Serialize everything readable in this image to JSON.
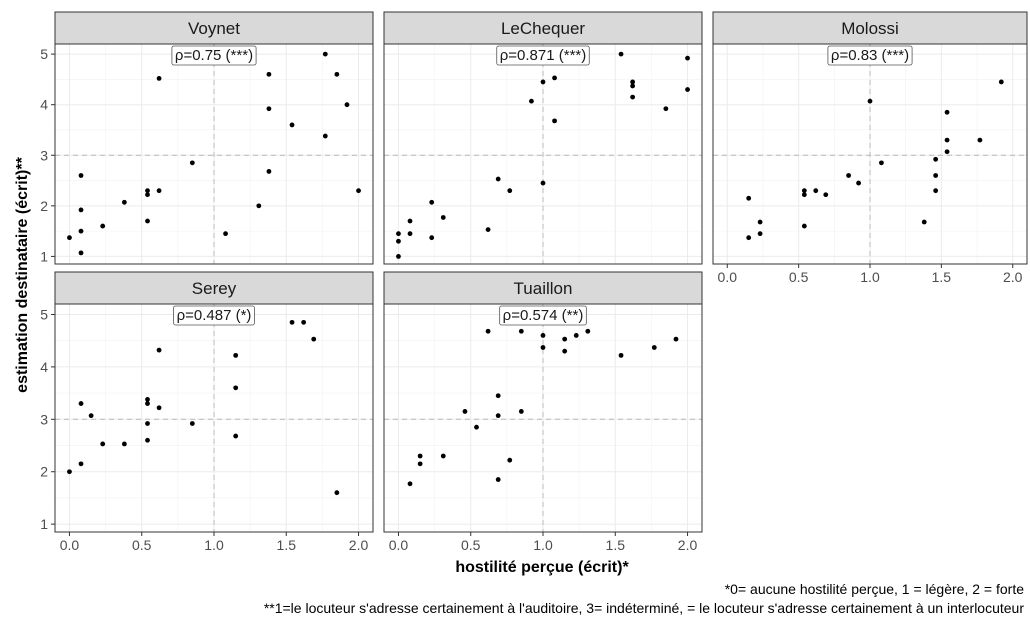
{
  "chart_data": {
    "type": "scatter",
    "facet_layout": "3 columns, 2 rows, free x-axis ticks on bottom panels",
    "xlabel": "hostilité perçue (écrit)*",
    "ylabel": "estimation destinataire (écrit)**",
    "xlim": [
      -0.1,
      2.1
    ],
    "ylim": [
      0.85,
      5.2
    ],
    "xticks": [
      "0.0",
      "0.5",
      "1.0",
      "1.5",
      "2.0"
    ],
    "yticks": [
      "1",
      "2",
      "3",
      "4",
      "5"
    ],
    "reference_lines": {
      "x": 1.0,
      "y": 3.0,
      "style": "dashed",
      "color": "#bfbfbf"
    },
    "grid": true,
    "point_color": "#000000",
    "strip_color": "#d9d9d9",
    "panels": [
      {
        "name": "Voynet",
        "annotation": "ρ=0.75 (***)",
        "points": [
          [
            0.0,
            1.37
          ],
          [
            0.08,
            1.07
          ],
          [
            0.08,
            1.5
          ],
          [
            0.08,
            1.92
          ],
          [
            0.08,
            2.6
          ],
          [
            0.23,
            1.6
          ],
          [
            0.38,
            2.07
          ],
          [
            0.54,
            1.7
          ],
          [
            0.54,
            2.22
          ],
          [
            0.54,
            2.3
          ],
          [
            0.62,
            2.3
          ],
          [
            0.62,
            4.52
          ],
          [
            0.85,
            2.85
          ],
          [
            1.08,
            1.45
          ],
          [
            1.31,
            2.0
          ],
          [
            1.38,
            2.68
          ],
          [
            1.38,
            3.92
          ],
          [
            1.38,
            4.6
          ],
          [
            1.54,
            3.6
          ],
          [
            1.77,
            3.38
          ],
          [
            1.77,
            5.0
          ],
          [
            1.85,
            4.6
          ],
          [
            1.92,
            4.0
          ],
          [
            2.0,
            2.3
          ]
        ]
      },
      {
        "name": "LeChequer",
        "annotation": "ρ=0.871 (***)",
        "points": [
          [
            0.0,
            1.0
          ],
          [
            0.0,
            1.3
          ],
          [
            0.0,
            1.45
          ],
          [
            0.08,
            1.45
          ],
          [
            0.08,
            1.7
          ],
          [
            0.23,
            1.37
          ],
          [
            0.23,
            2.07
          ],
          [
            0.31,
            1.77
          ],
          [
            0.62,
            1.53
          ],
          [
            0.69,
            2.53
          ],
          [
            0.77,
            2.3
          ],
          [
            0.92,
            4.07
          ],
          [
            1.0,
            2.45
          ],
          [
            1.0,
            4.45
          ],
          [
            1.08,
            3.68
          ],
          [
            1.08,
            4.53
          ],
          [
            1.54,
            5.0
          ],
          [
            1.62,
            4.15
          ],
          [
            1.62,
            4.37
          ],
          [
            1.62,
            4.45
          ],
          [
            1.85,
            3.92
          ],
          [
            2.0,
            4.3
          ],
          [
            2.0,
            4.92
          ]
        ]
      },
      {
        "name": "Molossi",
        "annotation": "ρ=0.83 (***)",
        "points": [
          [
            0.15,
            1.37
          ],
          [
            0.15,
            2.15
          ],
          [
            0.23,
            1.45
          ],
          [
            0.23,
            1.68
          ],
          [
            0.54,
            1.6
          ],
          [
            0.54,
            2.22
          ],
          [
            0.54,
            2.3
          ],
          [
            0.62,
            2.3
          ],
          [
            0.69,
            2.22
          ],
          [
            0.85,
            2.6
          ],
          [
            0.92,
            2.45
          ],
          [
            1.0,
            4.07
          ],
          [
            1.08,
            2.85
          ],
          [
            1.38,
            1.68
          ],
          [
            1.46,
            2.3
          ],
          [
            1.46,
            2.6
          ],
          [
            1.46,
            2.92
          ],
          [
            1.54,
            3.07
          ],
          [
            1.54,
            3.3
          ],
          [
            1.54,
            3.85
          ],
          [
            1.77,
            3.3
          ],
          [
            1.92,
            4.45
          ]
        ]
      },
      {
        "name": "Serey",
        "annotation": "ρ=0.487 (*)",
        "points": [
          [
            0.0,
            2.0
          ],
          [
            0.08,
            2.15
          ],
          [
            0.08,
            3.3
          ],
          [
            0.15,
            3.07
          ],
          [
            0.23,
            2.53
          ],
          [
            0.38,
            2.53
          ],
          [
            0.54,
            2.6
          ],
          [
            0.54,
            2.92
          ],
          [
            0.54,
            3.3
          ],
          [
            0.54,
            3.38
          ],
          [
            0.62,
            3.22
          ],
          [
            0.62,
            4.32
          ],
          [
            0.85,
            2.92
          ],
          [
            1.15,
            2.68
          ],
          [
            1.15,
            3.6
          ],
          [
            1.15,
            4.22
          ],
          [
            1.54,
            4.85
          ],
          [
            1.62,
            4.85
          ],
          [
            1.69,
            4.53
          ],
          [
            1.85,
            1.6
          ]
        ]
      },
      {
        "name": "Tuaillon",
        "annotation": "ρ=0.574 (**)",
        "points": [
          [
            0.08,
            1.77
          ],
          [
            0.15,
            2.15
          ],
          [
            0.15,
            2.3
          ],
          [
            0.31,
            2.3
          ],
          [
            0.46,
            3.15
          ],
          [
            0.54,
            2.85
          ],
          [
            0.62,
            4.68
          ],
          [
            0.69,
            1.85
          ],
          [
            0.69,
            3.07
          ],
          [
            0.69,
            3.45
          ],
          [
            0.77,
            2.22
          ],
          [
            0.85,
            3.15
          ],
          [
            0.85,
            4.68
          ],
          [
            1.0,
            4.37
          ],
          [
            1.0,
            4.6
          ],
          [
            1.15,
            4.3
          ],
          [
            1.15,
            4.53
          ],
          [
            1.23,
            4.6
          ],
          [
            1.31,
            4.68
          ],
          [
            1.54,
            4.22
          ],
          [
            1.77,
            4.37
          ],
          [
            1.92,
            4.53
          ]
        ]
      }
    ]
  },
  "caption": {
    "line1": "*0= aucune hostilité perçue, 1 = légère, 2 = forte",
    "line2": "**1=le locuteur s'adresse certainement à l'auditoire, 3= indéterminé,  = le locuteur s'adresse certainement à un interlocuteur"
  }
}
